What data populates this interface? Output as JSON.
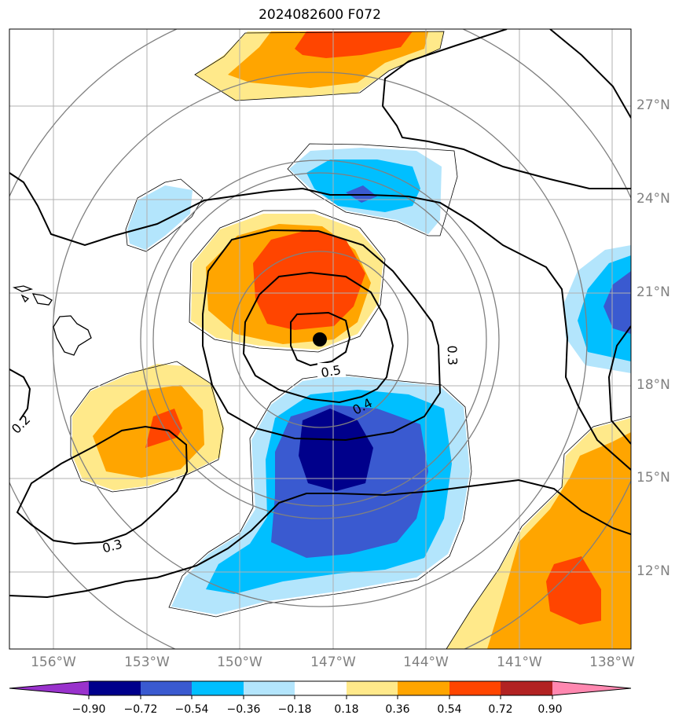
{
  "title": "2024082600 F072",
  "map": {
    "lon_labels": [
      "156°W",
      "153°W",
      "150°W",
      "147°W",
      "144°W",
      "141°W",
      "138°W"
    ],
    "lat_labels": [
      "27°N",
      "24°N",
      "21°N",
      "18°N",
      "15°N",
      "12°N"
    ],
    "contour_labels": [
      "0.5",
      "0.4",
      "0.3",
      "0.3",
      "0.2"
    ],
    "colors": {
      "neg_090": "#9932cc",
      "neg_072": "#00008b",
      "neg_054": "#3a5ad0",
      "neg_036": "#00bfff",
      "neg_018": "#b3e5fc",
      "pos_018": "#ffe98a",
      "pos_036": "#ffa500",
      "pos_054": "#ff4500",
      "pos_072": "#b22222",
      "pos_090": "#ff88b0"
    },
    "storm_center_icon": "black-dot-marker"
  },
  "colorbar": {
    "ticks": [
      "−0.90",
      "−0.72",
      "−0.54",
      "−0.36",
      "−0.18",
      "0.18",
      "0.36",
      "0.54",
      "0.72",
      "0.90"
    ]
  }
}
